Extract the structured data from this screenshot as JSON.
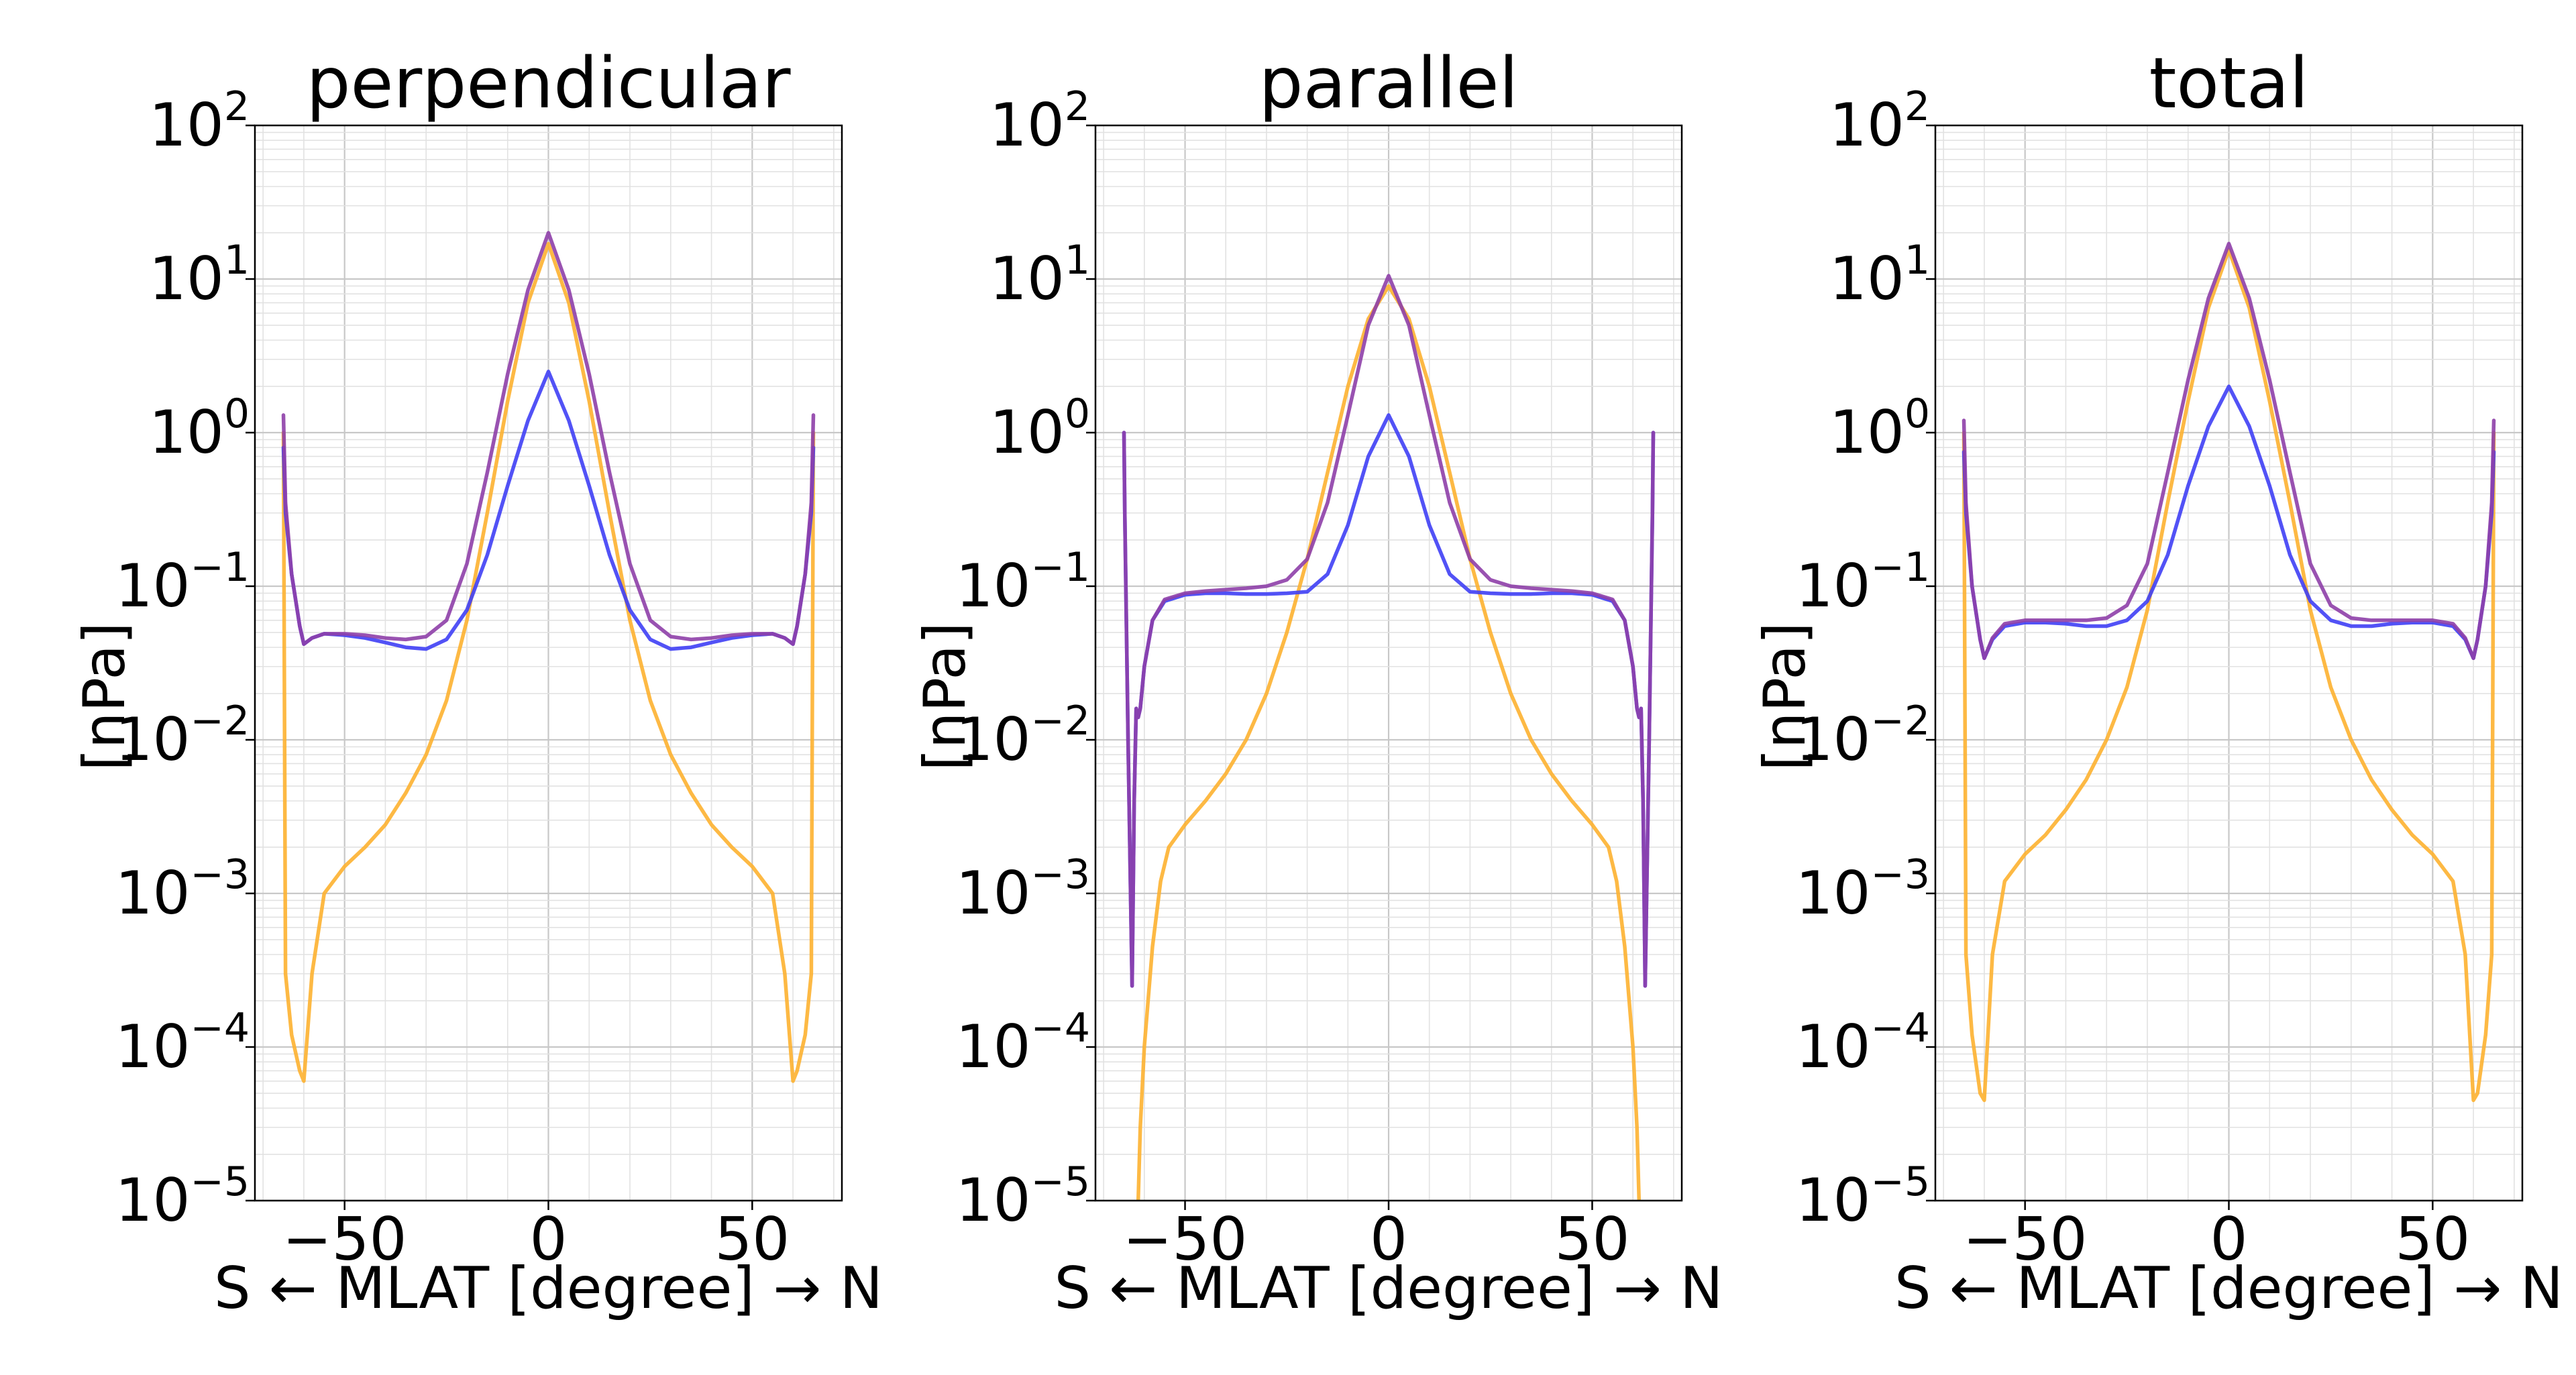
{
  "chart_data": [
    {
      "type": "line",
      "title": "perpendicular",
      "xlabel": "S ← MLAT [degree] → N",
      "ylabel": "[nPa]",
      "yscale": "log",
      "xlim": [
        -72,
        72
      ],
      "ylim": [
        1e-05,
        100
      ],
      "xticks": [
        -50,
        0,
        50
      ],
      "xtick_labels": [
        "−50",
        "0",
        "50"
      ],
      "ytick_labels": [
        {
          "base": "10",
          "exp": "−5"
        },
        {
          "base": "10",
          "exp": "−4"
        },
        {
          "base": "10",
          "exp": "−3"
        },
        {
          "base": "10",
          "exp": "−2"
        },
        {
          "base": "10",
          "exp": "−1"
        },
        {
          "base": "10",
          "exp": "0"
        },
        {
          "base": "10",
          "exp": "1"
        },
        {
          "base": "10",
          "exp": "2"
        }
      ],
      "grid": true,
      "series": [
        {
          "color": "#FDB130",
          "x": [
            -65,
            -64.5,
            -63,
            -61,
            -60,
            -58,
            -55,
            -50,
            -45,
            -40,
            -35,
            -30,
            -25,
            -20,
            -15,
            -10,
            -5,
            0,
            5,
            10,
            15,
            20,
            25,
            30,
            35,
            40,
            45,
            50,
            55,
            58,
            60,
            61,
            63,
            64.5,
            65
          ],
          "y": [
            1.0,
            0.0003,
            0.00012,
            7e-05,
            6e-05,
            0.0003,
            0.001,
            0.0015,
            0.002,
            0.0028,
            0.0045,
            0.008,
            0.018,
            0.06,
            0.3,
            1.6,
            7.0,
            17.0,
            7.0,
            1.6,
            0.3,
            0.06,
            0.018,
            0.008,
            0.0045,
            0.0028,
            0.002,
            0.0015,
            0.001,
            0.0003,
            6e-05,
            7e-05,
            0.00012,
            0.0003,
            1.0
          ]
        },
        {
          "color": "#3F3FF5",
          "x": [
            -65,
            -64.5,
            -63,
            -61,
            -60,
            -58,
            -55,
            -50,
            -45,
            -40,
            -35,
            -30,
            -25,
            -20,
            -15,
            -10,
            -5,
            0,
            5,
            10,
            15,
            20,
            25,
            30,
            35,
            40,
            45,
            50,
            55,
            58,
            60,
            61,
            63,
            64.5,
            65
          ],
          "y": [
            0.8,
            0.3,
            0.12,
            0.055,
            0.042,
            0.046,
            0.049,
            0.048,
            0.046,
            0.043,
            0.04,
            0.039,
            0.045,
            0.07,
            0.16,
            0.45,
            1.2,
            2.5,
            1.2,
            0.45,
            0.16,
            0.07,
            0.045,
            0.039,
            0.04,
            0.043,
            0.046,
            0.048,
            0.049,
            0.046,
            0.042,
            0.055,
            0.12,
            0.3,
            0.8
          ]
        },
        {
          "color": "#8E3FA8",
          "x": [
            -65,
            -64.5,
            -63,
            -61,
            -60,
            -58,
            -55,
            -50,
            -45,
            -40,
            -35,
            -30,
            -25,
            -20,
            -15,
            -10,
            -5,
            0,
            5,
            10,
            15,
            20,
            25,
            30,
            35,
            40,
            45,
            50,
            55,
            58,
            60,
            61,
            63,
            64.5,
            65
          ],
          "y": [
            1.3,
            0.35,
            0.12,
            0.055,
            0.042,
            0.046,
            0.049,
            0.049,
            0.048,
            0.046,
            0.045,
            0.047,
            0.06,
            0.14,
            0.55,
            2.4,
            8.5,
            20.0,
            8.5,
            2.4,
            0.55,
            0.14,
            0.06,
            0.047,
            0.045,
            0.046,
            0.048,
            0.049,
            0.049,
            0.046,
            0.042,
            0.055,
            0.12,
            0.35,
            1.3
          ]
        }
      ]
    },
    {
      "type": "line",
      "title": "parallel",
      "xlabel": "S ← MLAT [degree] → N",
      "ylabel": "[nPa]",
      "yscale": "log",
      "xlim": [
        -72,
        72
      ],
      "ylim": [
        1e-05,
        100
      ],
      "xticks": [
        -50,
        0,
        50
      ],
      "xtick_labels": [
        "−50",
        "0",
        "50"
      ],
      "ytick_labels": [
        {
          "base": "10",
          "exp": "−5"
        },
        {
          "base": "10",
          "exp": "−4"
        },
        {
          "base": "10",
          "exp": "−3"
        },
        {
          "base": "10",
          "exp": "−2"
        },
        {
          "base": "10",
          "exp": "−1"
        },
        {
          "base": "10",
          "exp": "0"
        },
        {
          "base": "10",
          "exp": "1"
        },
        {
          "base": "10",
          "exp": "2"
        }
      ],
      "grid": true,
      "series": [
        {
          "color": "#FDB130",
          "x": [
            -61.5,
            -61,
            -60,
            -58,
            -56,
            -54,
            -50,
            -45,
            -40,
            -35,
            -30,
            -25,
            -20,
            -15,
            -10,
            -5,
            0,
            5,
            10,
            15,
            20,
            25,
            30,
            35,
            40,
            45,
            50,
            54,
            56,
            58,
            60,
            61,
            61.5
          ],
          "y": [
            1e-05,
            3e-05,
            0.0001,
            0.00045,
            0.0012,
            0.002,
            0.0028,
            0.004,
            0.006,
            0.01,
            0.02,
            0.05,
            0.15,
            0.55,
            2.0,
            5.5,
            9.0,
            5.5,
            2.0,
            0.55,
            0.15,
            0.05,
            0.02,
            0.01,
            0.006,
            0.004,
            0.0028,
            0.002,
            0.0012,
            0.00045,
            0.0001,
            3e-05,
            1e-05
          ]
        },
        {
          "color": "#3F3FF5",
          "x": [
            -65,
            -64.8,
            -64,
            -63,
            -62.5,
            -62,
            -61.5,
            -61,
            -60,
            -58,
            -55,
            -50,
            -45,
            -40,
            -35,
            -30,
            -25,
            -20,
            -15,
            -10,
            -5,
            0,
            5,
            10,
            15,
            20,
            25,
            30,
            35,
            40,
            45,
            50,
            55,
            58,
            60,
            61,
            61.5,
            62,
            62.5,
            63,
            64,
            64.8,
            65
          ],
          "y": [
            1.0,
            0.3,
            0.01,
            0.00025,
            0.004,
            0.016,
            0.014,
            0.016,
            0.03,
            0.06,
            0.08,
            0.088,
            0.09,
            0.09,
            0.089,
            0.089,
            0.09,
            0.092,
            0.12,
            0.25,
            0.7,
            1.3,
            0.7,
            0.25,
            0.12,
            0.092,
            0.09,
            0.089,
            0.089,
            0.09,
            0.09,
            0.088,
            0.08,
            0.06,
            0.03,
            0.016,
            0.014,
            0.016,
            0.004,
            0.00025,
            0.01,
            0.3,
            1.0
          ]
        },
        {
          "color": "#8E3FA8",
          "x": [
            -65,
            -64.8,
            -64,
            -63,
            -62.5,
            -62,
            -61.5,
            -61,
            -60,
            -58,
            -55,
            -50,
            -45,
            -40,
            -35,
            -30,
            -25,
            -20,
            -15,
            -10,
            -5,
            0,
            5,
            10,
            15,
            20,
            25,
            30,
            35,
            40,
            45,
            50,
            55,
            58,
            60,
            61,
            61.5,
            62,
            62.5,
            63,
            64,
            64.8,
            65
          ],
          "y": [
            1.0,
            0.3,
            0.01,
            0.00025,
            0.004,
            0.016,
            0.014,
            0.016,
            0.03,
            0.06,
            0.082,
            0.09,
            0.093,
            0.095,
            0.097,
            0.1,
            0.11,
            0.15,
            0.35,
            1.3,
            5.0,
            10.5,
            5.0,
            1.3,
            0.35,
            0.15,
            0.11,
            0.1,
            0.097,
            0.095,
            0.093,
            0.09,
            0.082,
            0.06,
            0.03,
            0.016,
            0.014,
            0.016,
            0.004,
            0.00025,
            0.01,
            0.3,
            1.0
          ]
        }
      ]
    },
    {
      "type": "line",
      "title": "total",
      "xlabel": "S ← MLAT [degree] → N",
      "ylabel": "[nPa]",
      "yscale": "log",
      "xlim": [
        -72,
        72
      ],
      "ylim": [
        1e-05,
        100
      ],
      "xticks": [
        -50,
        0,
        50
      ],
      "xtick_labels": [
        "−50",
        "0",
        "50"
      ],
      "ytick_labels": [
        {
          "base": "10",
          "exp": "−5"
        },
        {
          "base": "10",
          "exp": "−4"
        },
        {
          "base": "10",
          "exp": "−3"
        },
        {
          "base": "10",
          "exp": "−2"
        },
        {
          "base": "10",
          "exp": "−1"
        },
        {
          "base": "10",
          "exp": "0"
        },
        {
          "base": "10",
          "exp": "1"
        },
        {
          "base": "10",
          "exp": "2"
        }
      ],
      "grid": true,
      "series": [
        {
          "color": "#FDB130",
          "x": [
            -65,
            -64.5,
            -63,
            -61,
            -60,
            -58,
            -55,
            -50,
            -45,
            -40,
            -35,
            -30,
            -25,
            -20,
            -15,
            -10,
            -5,
            0,
            5,
            10,
            15,
            20,
            25,
            30,
            35,
            40,
            45,
            50,
            55,
            58,
            60,
            61,
            63,
            64.5,
            65
          ],
          "y": [
            1.0,
            0.0004,
            0.00012,
            5e-05,
            4.5e-05,
            0.0004,
            0.0012,
            0.0018,
            0.0024,
            0.0035,
            0.0055,
            0.01,
            0.022,
            0.07,
            0.35,
            1.6,
            6.5,
            15.5,
            6.5,
            1.6,
            0.35,
            0.07,
            0.022,
            0.01,
            0.0055,
            0.0035,
            0.0024,
            0.0018,
            0.0012,
            0.0004,
            4.5e-05,
            5e-05,
            0.00012,
            0.0004,
            1.0
          ]
        },
        {
          "color": "#3F3FF5",
          "x": [
            -65,
            -64.5,
            -63,
            -61,
            -60,
            -58,
            -55,
            -50,
            -45,
            -40,
            -35,
            -30,
            -25,
            -20,
            -15,
            -10,
            -5,
            0,
            5,
            10,
            15,
            20,
            25,
            30,
            35,
            40,
            45,
            50,
            55,
            58,
            60,
            61,
            63,
            64.5,
            65
          ],
          "y": [
            0.75,
            0.3,
            0.1,
            0.045,
            0.034,
            0.045,
            0.055,
            0.058,
            0.058,
            0.057,
            0.055,
            0.055,
            0.06,
            0.08,
            0.16,
            0.45,
            1.1,
            2.0,
            1.1,
            0.45,
            0.16,
            0.08,
            0.06,
            0.055,
            0.055,
            0.057,
            0.058,
            0.058,
            0.055,
            0.045,
            0.034,
            0.045,
            0.1,
            0.3,
            0.75
          ]
        },
        {
          "color": "#8E3FA8",
          "x": [
            -65,
            -64.5,
            -63,
            -61,
            -60,
            -58,
            -55,
            -50,
            -45,
            -40,
            -35,
            -30,
            -25,
            -20,
            -15,
            -10,
            -5,
            0,
            5,
            10,
            15,
            20,
            25,
            30,
            35,
            40,
            45,
            50,
            55,
            58,
            60,
            61,
            63,
            64.5,
            65
          ],
          "y": [
            1.2,
            0.35,
            0.1,
            0.045,
            0.034,
            0.046,
            0.057,
            0.06,
            0.06,
            0.06,
            0.06,
            0.062,
            0.075,
            0.14,
            0.55,
            2.2,
            7.5,
            17.0,
            7.5,
            2.2,
            0.55,
            0.14,
            0.075,
            0.062,
            0.06,
            0.06,
            0.06,
            0.06,
            0.057,
            0.046,
            0.034,
            0.045,
            0.1,
            0.35,
            1.2
          ]
        }
      ]
    }
  ]
}
